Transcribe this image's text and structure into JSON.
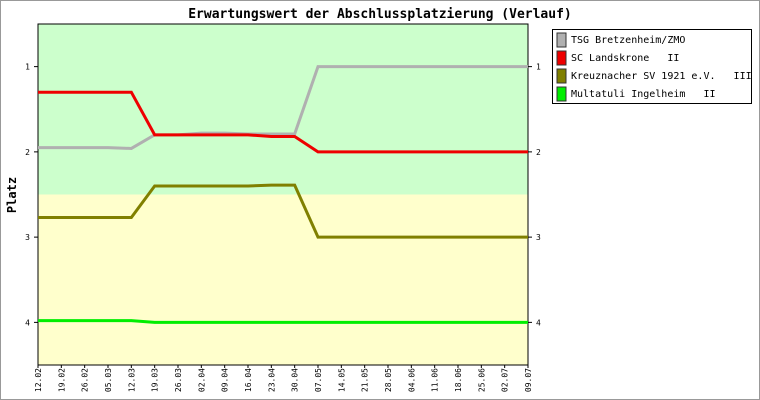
{
  "chart_data": {
    "type": "line",
    "title": "Erwartungswert der Abschlussplatzierung (Verlauf)",
    "y_label": "Platz",
    "categories": [
      "12.02",
      "19.02",
      "26.02",
      "05.03",
      "12.03",
      "19.03",
      "26.03",
      "02.04",
      "09.04",
      "16.04",
      "23.04",
      "30.04",
      "07.05",
      "14.05",
      "21.05",
      "28.05",
      "04.06",
      "11.06",
      "18.06",
      "25.06",
      "02.07",
      "09.07"
    ],
    "ylim": [
      4.5,
      0.5
    ],
    "yticks": [
      1,
      2,
      3,
      4
    ],
    "zones": [
      {
        "from": 0.5,
        "to": 2.5,
        "color": "#ccffcc"
      },
      {
        "from": 2.5,
        "to": 4.5,
        "color": "#ffffcc"
      }
    ],
    "legend": "outside-top-right",
    "series": [
      {
        "name": "TSG Bretzenheim/ZMO",
        "color": "#b0b0b0",
        "values": [
          1.95,
          1.95,
          1.95,
          1.95,
          1.96,
          1.8,
          1.8,
          1.78,
          1.78,
          1.79,
          1.79,
          1.79,
          1.0,
          1.0,
          1.0,
          1.0,
          1.0,
          1.0,
          1.0,
          1.0,
          1.0,
          1.0
        ]
      },
      {
        "name": "SC Landskrone   II",
        "color": "#ee0000",
        "values": [
          1.3,
          1.3,
          1.3,
          1.3,
          1.3,
          1.8,
          1.8,
          1.8,
          1.8,
          1.8,
          1.82,
          1.82,
          2.0,
          2.0,
          2.0,
          2.0,
          2.0,
          2.0,
          2.0,
          2.0,
          2.0,
          2.0
        ]
      },
      {
        "name": "Kreuznacher SV 1921 e.V.   III",
        "color": "#808000",
        "values": [
          2.77,
          2.77,
          2.77,
          2.77,
          2.77,
          2.4,
          2.4,
          2.4,
          2.4,
          2.4,
          2.39,
          2.39,
          3.0,
          3.0,
          3.0,
          3.0,
          3.0,
          3.0,
          3.0,
          3.0,
          3.0,
          3.0
        ]
      },
      {
        "name": "Multatuli Ingelheim   II",
        "color": "#00ee00",
        "values": [
          3.98,
          3.98,
          3.98,
          3.98,
          3.98,
          4.0,
          4.0,
          4.0,
          4.0,
          4.0,
          4.0,
          4.0,
          4.0,
          4.0,
          4.0,
          4.0,
          4.0,
          4.0,
          4.0,
          4.0,
          4.0,
          4.0
        ]
      }
    ]
  }
}
